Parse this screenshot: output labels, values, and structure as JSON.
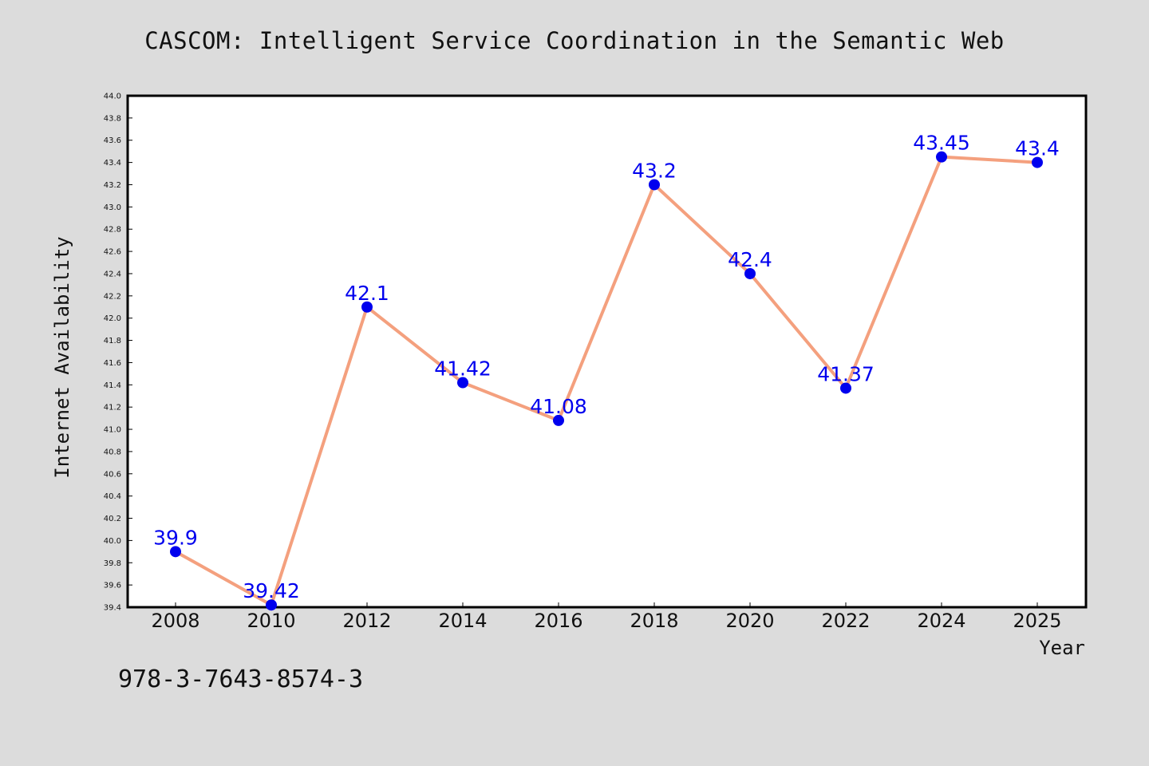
{
  "chart_data": {
    "type": "line",
    "title": "CASCOM: Intelligent Service Coordination in the Semantic Web",
    "xlabel": "Year",
    "ylabel": "Internet Availability",
    "categories": [
      "2008",
      "2010",
      "2012",
      "2014",
      "2016",
      "2018",
      "2020",
      "2022",
      "2024",
      "2025"
    ],
    "series": [
      {
        "values": [
          39.9,
          39.42,
          42.1,
          41.42,
          41.08,
          43.2,
          42.4,
          41.37,
          43.45,
          43.4
        ],
        "labels": [
          "39.9",
          "39.42",
          "42.1",
          "41.42",
          "41.08",
          "43.2",
          "42.4",
          "41.37",
          "43.45",
          "43.4"
        ],
        "line_color": "#f4a07e",
        "marker_color": "#0000ee"
      }
    ],
    "ylim": [
      39.4,
      44.0
    ],
    "yticks": [
      "39.4",
      "39.6",
      "39.8",
      "40.0",
      "40.2",
      "40.4",
      "40.6",
      "40.8",
      "41.0",
      "41.2",
      "41.4",
      "41.6",
      "41.8",
      "42.0",
      "42.2",
      "42.4",
      "42.6",
      "42.8",
      "43.0",
      "43.2",
      "43.4",
      "43.6",
      "43.8",
      "44.0"
    ],
    "grid": false,
    "legend": "none"
  },
  "footer": {
    "isbn": "978-3-7643-8574-3"
  },
  "colors": {
    "background": "#dcdcdc",
    "plot_background": "#ffffff",
    "line": "#f4a07e",
    "marker": "#0000ee",
    "data_label": "#0000ee"
  }
}
